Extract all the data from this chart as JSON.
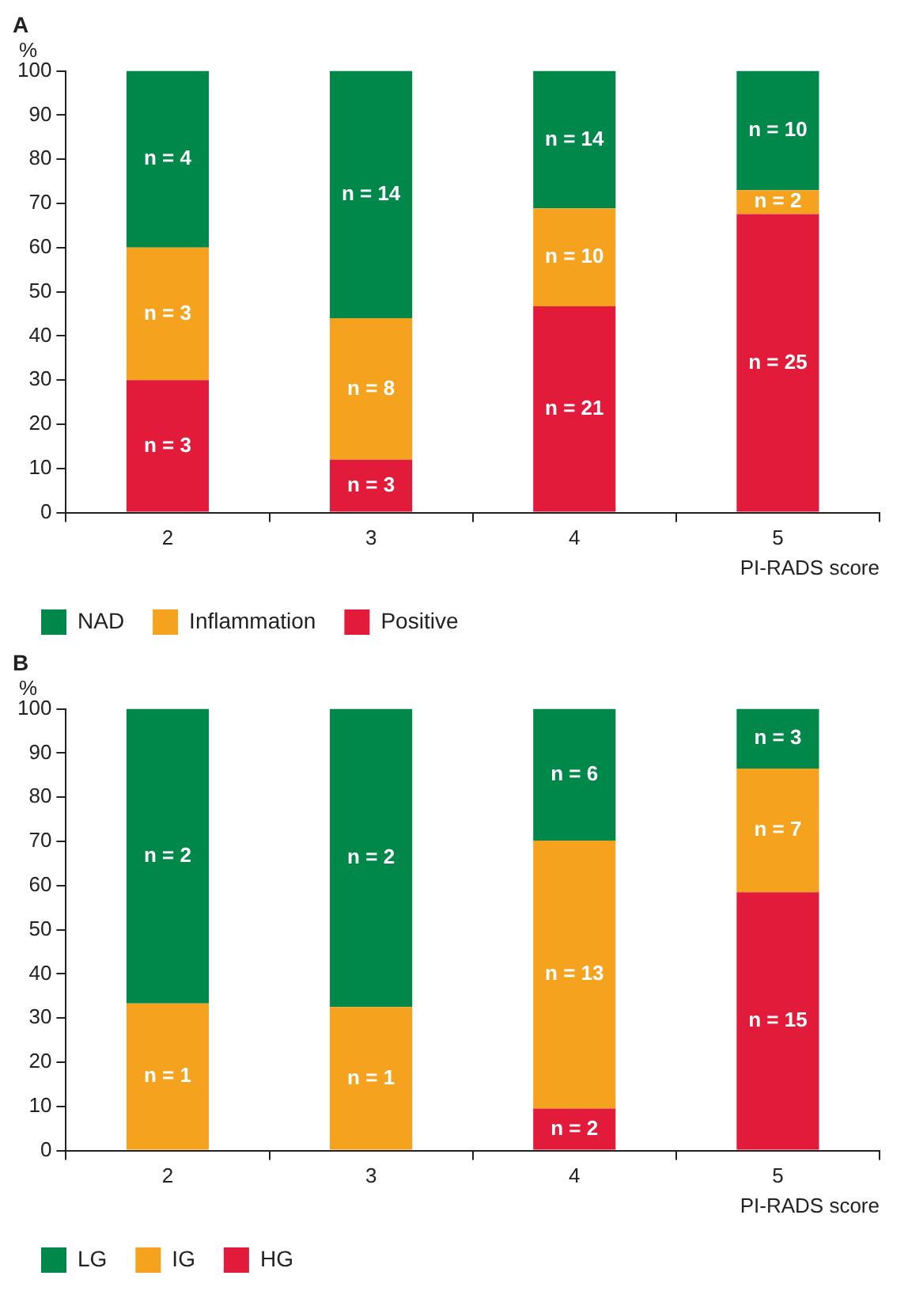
{
  "chart_data": [
    {
      "type": "bar",
      "title": "A",
      "ylabel": "%",
      "xlabel": "PI-RADS score",
      "categories": [
        "2",
        "3",
        "4",
        "5"
      ],
      "stacked": true,
      "ylim": [
        0,
        100
      ],
      "yticks": [
        0,
        10,
        20,
        30,
        40,
        50,
        60,
        70,
        80,
        90,
        100
      ],
      "grid": false,
      "legend": "bottom left",
      "series": [
        {
          "name": "Positive",
          "color": "#e31b3b",
          "values": [
            30,
            12,
            46.7,
            67.6
          ]
        },
        {
          "name": "Inflammation",
          "color": "#f5a31f",
          "values": [
            30,
            32,
            22.2,
            5.4
          ]
        },
        {
          "name": "NAD",
          "color": "#00874a",
          "values": [
            40,
            56,
            31.1,
            27.0
          ]
        }
      ],
      "annotations": [
        "n = 3",
        "n = 3",
        "n = 4",
        "n = 3",
        "n = 8",
        "n = 14",
        "n = 21",
        "n = 10",
        "n = 14",
        "n = 25",
        "n = 2",
        "n = 10"
      ]
    },
    {
      "type": "bar",
      "title": "B",
      "ylabel": "%",
      "xlabel": "PI-RADS score",
      "categories": [
        "2",
        "3",
        "4",
        "5"
      ],
      "stacked": true,
      "ylim": [
        0,
        100
      ],
      "yticks": [
        0,
        10,
        20,
        30,
        40,
        50,
        60,
        70,
        80,
        90,
        100
      ],
      "grid": false,
      "legend": "bottom left",
      "series": [
        {
          "name": "HG",
          "color": "#e31b3b",
          "values": [
            0,
            0,
            9.5,
            58.5
          ]
        },
        {
          "name": "IG",
          "color": "#f5a31f",
          "values": [
            33.3,
            32.5,
            60.7,
            28
          ]
        },
        {
          "name": "LG",
          "color": "#00874a",
          "values": [
            66.7,
            67.5,
            29.8,
            13.5
          ]
        }
      ],
      "annotations": [
        "n = 1",
        "n = 2",
        "n = 1",
        "n = 2",
        "n = 2",
        "n = 13",
        "n = 6",
        "n = 15",
        "n = 7",
        "n = 3"
      ]
    }
  ]
}
